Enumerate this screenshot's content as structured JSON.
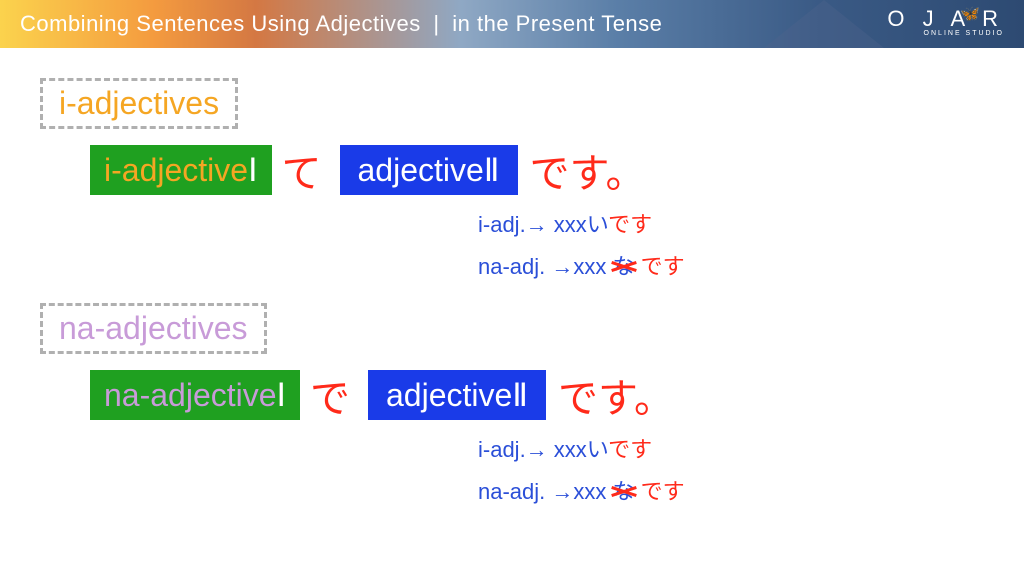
{
  "header": {
    "title_left": "Combining Sentences Using Adjectives",
    "separator": "|",
    "title_right": "in the Present Tense",
    "logo_main": "O J A R",
    "logo_sub": "ONLINE STUDIO",
    "butterfly": "🦋"
  },
  "colors": {
    "orange": "#f5a623",
    "violet": "#c89bd8",
    "green": "#1fa020",
    "blue": "#1a3be8",
    "red": "#ff2a1a",
    "note_blue": "#2b4fd8",
    "border_gray": "#b0b0b0"
  },
  "section1": {
    "label": "i-adjectives",
    "label_color": "#f5a623",
    "box1_prefix": "i-adjective",
    "box1_prefix_color": "#f5a623",
    "box1_num": "Ⅰ",
    "connector": "て",
    "box2_text": "adjective",
    "box2_num": "Ⅱ",
    "desu": "です。"
  },
  "section2": {
    "label": "na-adjectives",
    "label_color": "#c89bd8",
    "box1_prefix": "na-adjective",
    "box1_prefix_color": "#c89bd8",
    "box1_num": "Ⅰ",
    "connector": "で",
    "box2_text": "adjective",
    "box2_num": "Ⅱ",
    "desu": "です。"
  },
  "notes": {
    "i_prefix": "i-adj.→ ",
    "i_blue": "xxxい",
    "i_red": "です",
    "na_prefix": "na-adj. →",
    "na_blue": "xxx ",
    "na_strike": "な",
    "na_red": " です"
  }
}
